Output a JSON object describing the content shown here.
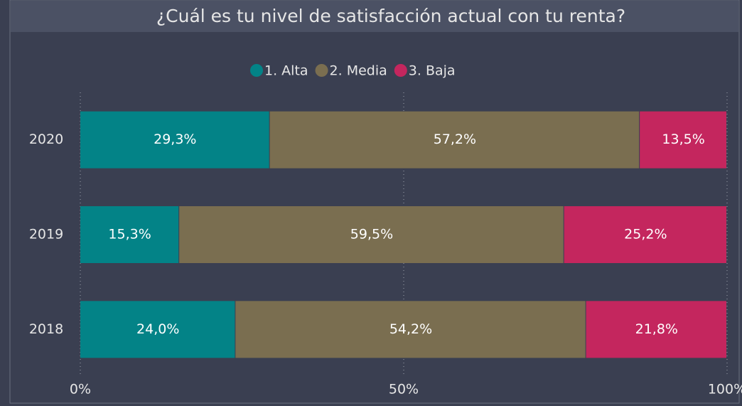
{
  "chart_data": {
    "type": "stacked_barh",
    "title": "¿Cuál es tu nivel de satisfacción actual con tu renta?",
    "categories": [
      "2020",
      "2019",
      "2018"
    ],
    "series": [
      {
        "name": "1. Alta",
        "color": "#038387",
        "values": [
          29.3,
          15.3,
          24.0
        ],
        "value_labels": [
          "29,3%",
          "15,3%",
          "24,0%"
        ]
      },
      {
        "name": "2. Media",
        "color": "#7a6e50",
        "values": [
          57.2,
          59.5,
          54.2
        ],
        "value_labels": [
          "57,2%",
          "59,5%",
          "54,2%"
        ]
      },
      {
        "name": "3. Baja",
        "color": "#c4265e",
        "values": [
          13.5,
          25.2,
          21.8
        ],
        "value_labels": [
          "13,5%",
          "25,2%",
          "21,8%"
        ]
      }
    ],
    "xlim": [
      0,
      100
    ],
    "xticks": [
      {
        "value": 0,
        "label": "0%"
      },
      {
        "value": 50,
        "label": "50%"
      },
      {
        "value": 100,
        "label": "100%"
      }
    ],
    "grid": true,
    "legend": "top"
  }
}
